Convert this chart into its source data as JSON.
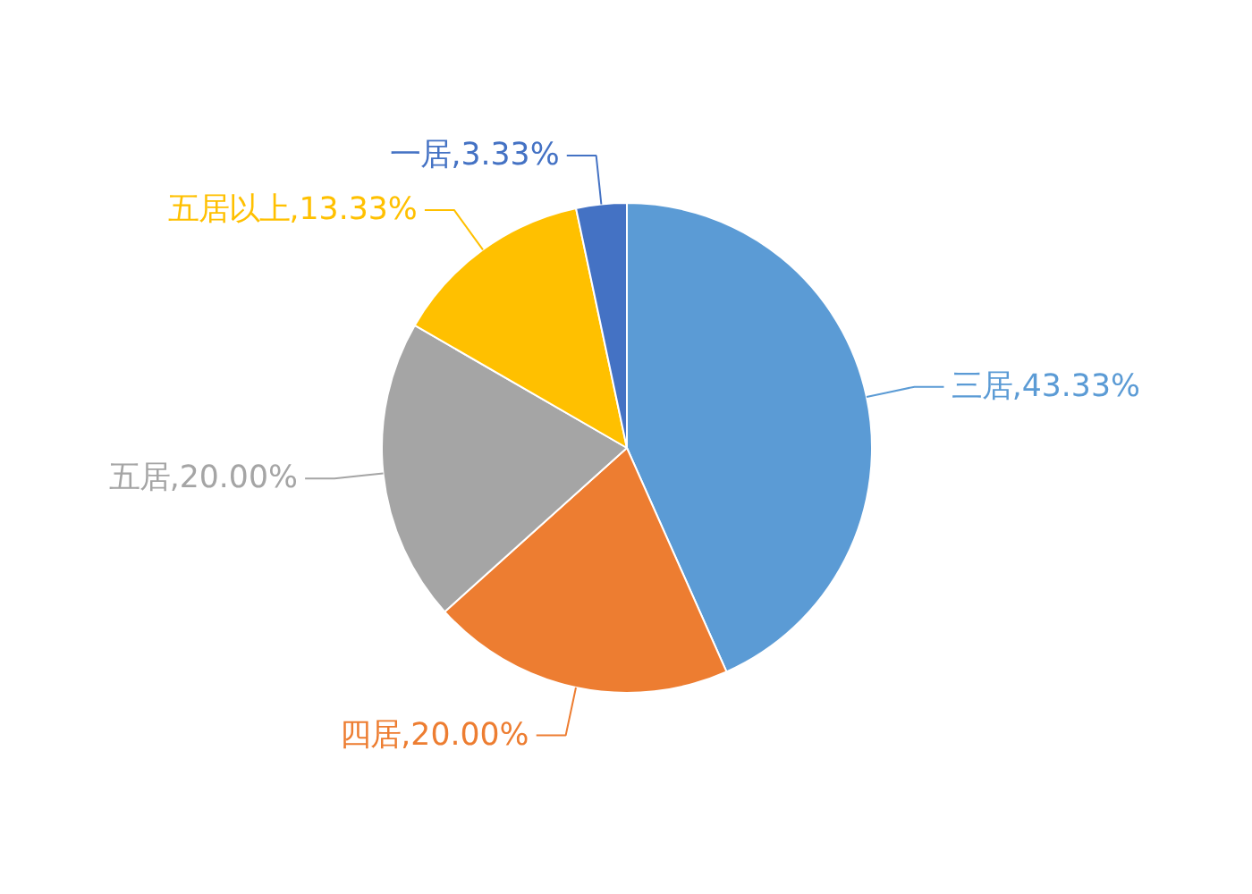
{
  "chart_data": {
    "type": "pie",
    "categories": [
      "三居",
      "四居",
      "五居",
      "五居以上",
      "一居"
    ],
    "values": [
      43.33,
      20.0,
      20.0,
      13.33,
      3.33
    ],
    "value_labels": [
      "43.33%",
      "20.00%",
      "20.00%",
      "13.33%",
      "3.33%"
    ],
    "colors": [
      "#5b9bd5",
      "#ed7d31",
      "#a5a5a5",
      "#ffc000",
      "#4472c4"
    ]
  }
}
